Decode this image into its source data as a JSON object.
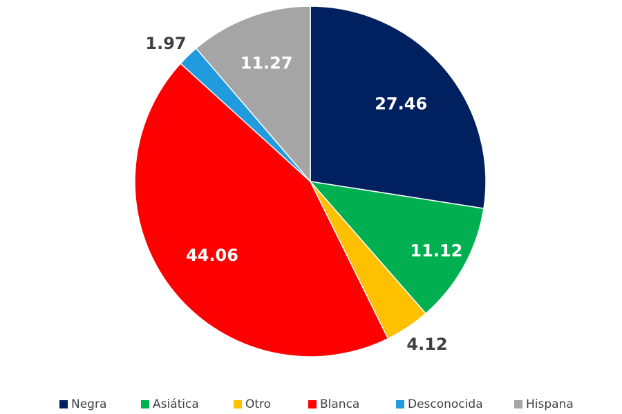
{
  "chart_data": {
    "type": "pie",
    "title": "",
    "categories": [
      "Negra",
      "Asiática",
      "Otro",
      "Blanca",
      "Desconocida",
      "Hispana"
    ],
    "values": [
      27.46,
      11.12,
      4.12,
      44.06,
      1.97,
      11.27
    ],
    "value_labels": [
      "27.46",
      "11.12",
      "4.12",
      "44.06",
      "1.97",
      "11.27"
    ],
    "colors": [
      "#002060",
      "#00B050",
      "#FFC000",
      "#FF0000",
      "#1F9BDE",
      "#A5A5A5"
    ],
    "label_colors": [
      "#ffffff",
      "#ffffff",
      "#404040",
      "#ffffff",
      "#404040",
      "#ffffff"
    ],
    "label_placement": [
      "inside",
      "inside",
      "outside",
      "inside",
      "outside",
      "inside"
    ],
    "start_angle": "12 o'clock",
    "direction": "clockwise",
    "legend_position": "bottom"
  }
}
